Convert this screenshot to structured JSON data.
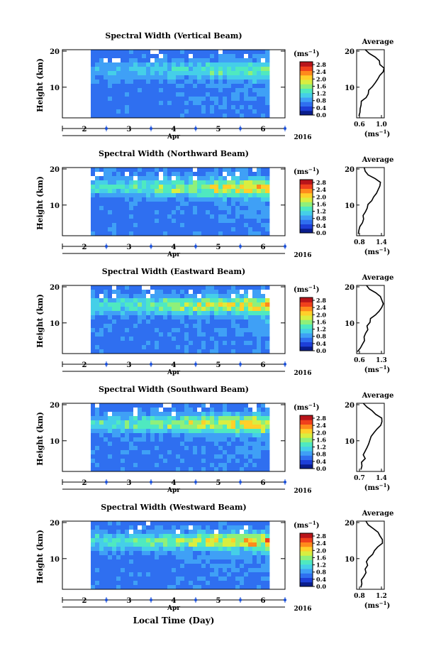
{
  "footer": {
    "xlabel": "Local Time (Day)"
  },
  "panel_common": {
    "ylabel": "Height (km)",
    "month": "Apr",
    "year": "2016",
    "colorbar_unit": "(ms",
    "colorbar_unit_exp": "−1",
    "colorbar_unit_close": ")",
    "avg_title": "Average",
    "avg_unit": "(ms",
    "avg_unit_exp": "−1",
    "avg_unit_close": ")"
  },
  "colors": {
    "cmap": [
      "#0a1d8c",
      "#1d3fd8",
      "#2f6ff0",
      "#3fa0f6",
      "#45cfe8",
      "#4fe9c0",
      "#8ff07a",
      "#d9ee40",
      "#ffd02a",
      "#ff8a1c",
      "#f0401c",
      "#b8141a"
    ],
    "plot_bg": "#2a4fd6"
  },
  "chart_data": [
    {
      "type": "heatmap",
      "title": "Spectral Width (Vertical Beam)",
      "x_ticks": [
        "2",
        "3",
        "4",
        "5",
        "6"
      ],
      "y_ticks": [
        "20",
        "10"
      ],
      "ylim_km": [
        1.5,
        20
      ],
      "colorbar_ticks": [
        "2.8",
        "2.4",
        "2.0",
        "1.6",
        "1.2",
        "0.8",
        "0.4",
        "0.0"
      ],
      "average_profile": {
        "xlim": [
          0.6,
          1.05
        ],
        "x_ticks": [
          "0.6",
          "1.0"
        ],
        "height_km": [
          2,
          3,
          4,
          5,
          6,
          7,
          8,
          9,
          10,
          11,
          12,
          13,
          14,
          15,
          16,
          17,
          18,
          19,
          20
        ],
        "value": [
          0.64,
          0.63,
          0.66,
          0.68,
          0.7,
          0.73,
          0.77,
          0.8,
          0.84,
          0.92,
          0.97,
          1.0,
          1.02,
          1.02,
          1.0,
          0.96,
          0.9,
          0.82,
          0.75
        ]
      }
    },
    {
      "type": "heatmap",
      "title": "Spectral Width (Northward Beam)",
      "x_ticks": [
        "2",
        "3",
        "4",
        "5",
        "6"
      ],
      "y_ticks": [
        "20",
        "10"
      ],
      "ylim_km": [
        1.5,
        20
      ],
      "colorbar_ticks": [
        "2.8",
        "2.4",
        "2.0",
        "1.6",
        "1.2",
        "0.8",
        "0.4",
        "0.0"
      ],
      "average_profile": {
        "xlim": [
          0.65,
          1.5
        ],
        "x_ticks": [
          "0.8",
          "1.4"
        ],
        "height_km": [
          2,
          3,
          4,
          5,
          6,
          7,
          8,
          9,
          10,
          11,
          12,
          13,
          14,
          15,
          16,
          17,
          18,
          19,
          20
        ],
        "value": [
          0.72,
          0.75,
          0.8,
          0.85,
          0.88,
          0.9,
          0.92,
          0.94,
          0.97,
          1.08,
          1.18,
          1.28,
          1.36,
          1.4,
          1.36,
          1.22,
          1.05,
          0.92,
          0.85
        ]
      }
    },
    {
      "type": "heatmap",
      "title": "Spectral Width (Eastward Beam)",
      "x_ticks": [
        "2",
        "3",
        "4",
        "5",
        "6"
      ],
      "y_ticks": [
        "20",
        "10"
      ],
      "ylim_km": [
        1.5,
        20
      ],
      "colorbar_ticks": [
        "2.8",
        "2.4",
        "2.0",
        "1.6",
        "1.2",
        "0.8",
        "0.4",
        "0.0"
      ],
      "average_profile": {
        "xlim": [
          0.6,
          1.3
        ],
        "x_ticks": [
          "0.6",
          "1.3"
        ],
        "height_km": [
          2,
          3,
          4,
          5,
          6,
          7,
          8,
          9,
          10,
          11,
          12,
          13,
          14,
          15,
          16,
          17,
          18,
          19,
          20
        ],
        "value": [
          0.66,
          0.7,
          0.74,
          0.78,
          0.8,
          0.83,
          0.85,
          0.88,
          0.92,
          0.98,
          1.05,
          1.14,
          1.22,
          1.27,
          1.24,
          1.18,
          1.08,
          0.95,
          0.85
        ]
      }
    },
    {
      "type": "heatmap",
      "title": "Spectral Width (Southward Beam)",
      "x_ticks": [
        "2",
        "3",
        "4",
        "5",
        "6"
      ],
      "y_ticks": [
        "20",
        "10"
      ],
      "ylim_km": [
        1.5,
        20
      ],
      "colorbar_ticks": [
        "2.8",
        "2.4",
        "2.0",
        "1.6",
        "1.2",
        "0.8",
        "0.4",
        "0.0"
      ],
      "average_profile": {
        "xlim": [
          0.65,
          1.45
        ],
        "x_ticks": [
          "0.7",
          "1.4"
        ],
        "height_km": [
          2,
          3,
          4,
          5,
          6,
          7,
          8,
          9,
          10,
          11,
          12,
          13,
          14,
          15,
          16,
          17,
          18,
          19,
          20
        ],
        "value": [
          0.75,
          0.78,
          0.82,
          0.86,
          0.88,
          0.9,
          0.93,
          0.96,
          1.0,
          1.08,
          1.18,
          1.28,
          1.36,
          1.39,
          1.33,
          1.22,
          1.08,
          0.95,
          0.88
        ]
      }
    },
    {
      "type": "heatmap",
      "title": "Spectral Width (Westward Beam)",
      "x_ticks": [
        "2",
        "3",
        "4",
        "5",
        "6"
      ],
      "y_ticks": [
        "20",
        "10"
      ],
      "ylim_km": [
        1.5,
        20
      ],
      "colorbar_ticks": [
        "2.8",
        "2.4",
        "2.0",
        "1.6",
        "1.2",
        "0.8",
        "0.4",
        "0.0"
      ],
      "average_profile": {
        "xlim": [
          0.6,
          1.25
        ],
        "x_ticks": [
          "0.8",
          "1.2"
        ],
        "height_km": [
          2,
          3,
          4,
          5,
          6,
          7,
          8,
          9,
          10,
          11,
          12,
          13,
          14,
          15,
          16,
          17,
          18,
          19,
          20
        ],
        "value": [
          0.67,
          0.7,
          0.74,
          0.78,
          0.8,
          0.82,
          0.84,
          0.86,
          0.9,
          0.97,
          1.04,
          1.12,
          1.18,
          1.2,
          1.15,
          1.08,
          0.98,
          0.9,
          0.84
        ]
      }
    }
  ]
}
